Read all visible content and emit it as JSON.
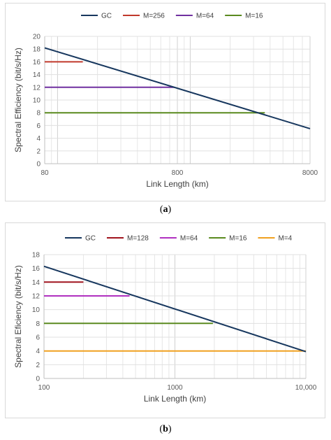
{
  "chart_data": [
    {
      "type": "line",
      "xlabel": "Link Length (km)",
      "ylabel": "Spectral Efficiency (bit/s/Hz)",
      "x_scale": "log",
      "xlim": [
        80,
        8000
      ],
      "ylim": [
        0,
        20
      ],
      "x_ticks": [
        80,
        800,
        8000
      ],
      "x_tick_labels": [
        "80",
        "800",
        "8000"
      ],
      "y_ticks": [
        0,
        2,
        4,
        6,
        8,
        10,
        12,
        14,
        16,
        18,
        20
      ],
      "grid": true,
      "legend_position": "top",
      "series": [
        {
          "name": "GC",
          "color": "#17375e",
          "x": [
            80,
            8000
          ],
          "y": [
            18.2,
            5.5
          ]
        },
        {
          "name": "M=256",
          "color": "#c0392b",
          "x": [
            80,
            155
          ],
          "y": [
            16,
            16
          ]
        },
        {
          "name": "M=64",
          "color": "#7030a0",
          "x": [
            80,
            760
          ],
          "y": [
            12,
            12
          ]
        },
        {
          "name": "M=16",
          "color": "#5a8a1f",
          "x": [
            80,
            3650
          ],
          "y": [
            8,
            8
          ]
        }
      ]
    },
    {
      "type": "line",
      "xlabel": "Link Length (km)",
      "ylabel": "Spectral Eficiency (bit/s/Hz)",
      "x_scale": "log",
      "xlim": [
        100,
        10000
      ],
      "ylim": [
        0,
        18
      ],
      "x_ticks": [
        100,
        1000,
        10000
      ],
      "x_tick_labels": [
        "100",
        "1000",
        "10,000"
      ],
      "y_ticks": [
        0,
        2,
        4,
        6,
        8,
        10,
        12,
        14,
        16,
        18
      ],
      "grid": true,
      "legend_position": "top",
      "series": [
        {
          "name": "GC",
          "color": "#17375e",
          "x": [
            100,
            10000
          ],
          "y": [
            16.3,
            3.9
          ]
        },
        {
          "name": "M=128",
          "color": "#a0141e",
          "x": [
            100,
            200
          ],
          "y": [
            14,
            14
          ]
        },
        {
          "name": "M=64",
          "color": "#b030c0",
          "x": [
            100,
            450
          ],
          "y": [
            12,
            12
          ]
        },
        {
          "name": "M=16",
          "color": "#5a8a1f",
          "x": [
            100,
            1950
          ],
          "y": [
            8,
            8
          ]
        },
        {
          "name": "M=4",
          "color": "#f0a020",
          "x": [
            100,
            10000
          ],
          "y": [
            4,
            4
          ]
        }
      ]
    }
  ],
  "captions": [
    "(a)",
    "(b)"
  ]
}
